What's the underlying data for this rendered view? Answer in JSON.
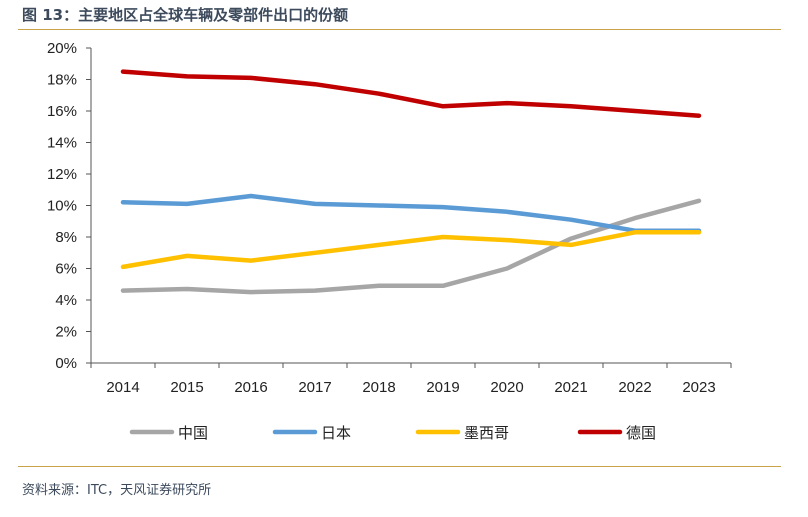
{
  "title": "图 13：主要地区占全球车辆及零部件出口的份额",
  "source": "资料来源：ITC，天风证券研究所",
  "chart_data": {
    "type": "line",
    "title": "图 13：主要地区占全球车辆及零部件出口的份额",
    "xlabel": "",
    "ylabel": "",
    "x": [
      "2014",
      "2015",
      "2016",
      "2017",
      "2018",
      "2019",
      "2020",
      "2021",
      "2022",
      "2023"
    ],
    "yticks": [
      "0%",
      "2%",
      "4%",
      "6%",
      "8%",
      "10%",
      "12%",
      "14%",
      "16%",
      "18%",
      "20%"
    ],
    "ylim": [
      0,
      20
    ],
    "grid": false,
    "legend_position": "bottom",
    "series": [
      {
        "name": "中国",
        "color": "#a6a6a6",
        "values": [
          4.6,
          4.7,
          4.5,
          4.6,
          4.9,
          4.9,
          6.0,
          7.9,
          9.2,
          10.3
        ]
      },
      {
        "name": "日本",
        "color": "#5b9bd5",
        "values": [
          10.2,
          10.1,
          10.6,
          10.1,
          10.0,
          9.9,
          9.6,
          9.1,
          8.4,
          8.4
        ]
      },
      {
        "name": "墨西哥",
        "color": "#ffc000",
        "values": [
          6.1,
          6.8,
          6.5,
          7.0,
          7.5,
          8.0,
          7.8,
          7.5,
          8.3,
          8.3
        ]
      },
      {
        "name": "德国",
        "color": "#c00000",
        "values": [
          18.5,
          18.2,
          18.1,
          17.7,
          17.1,
          16.3,
          16.5,
          16.3,
          16.0,
          15.7
        ]
      }
    ]
  }
}
